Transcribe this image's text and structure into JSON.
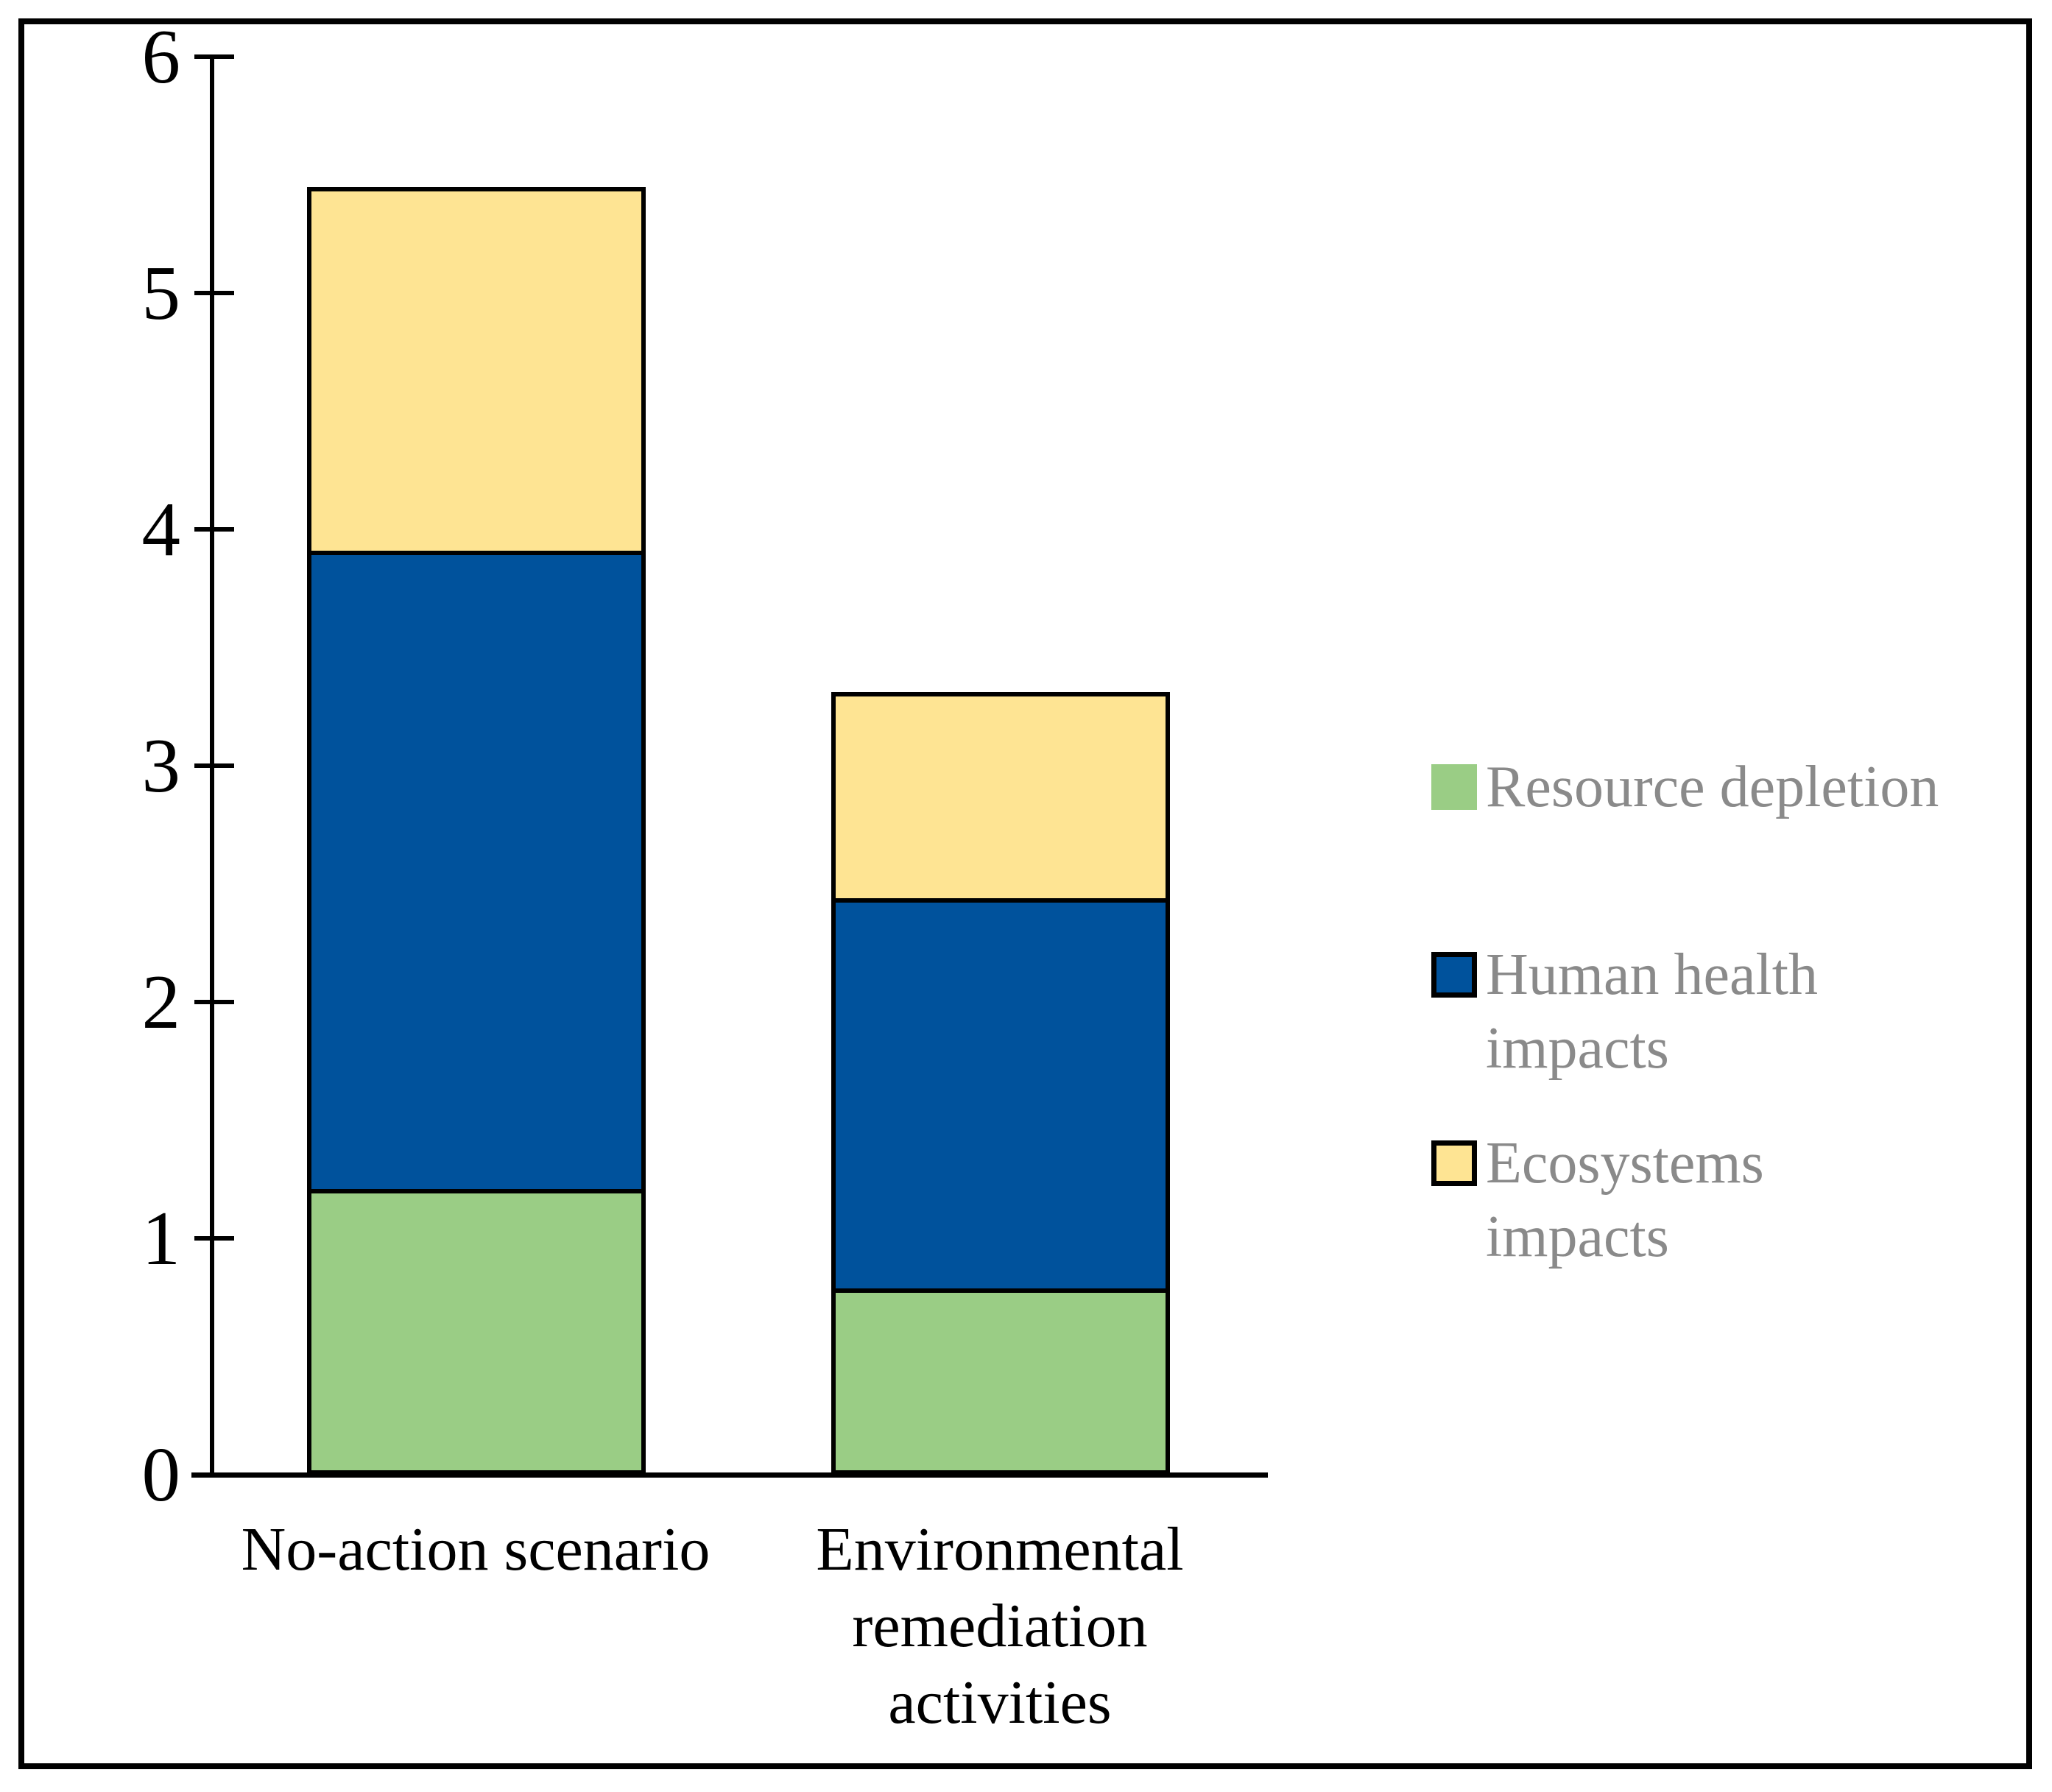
{
  "colors": {
    "background": "#FFFFFF",
    "figure_border": "#000000",
    "axis": "#000000",
    "tick_label_text": "#000000",
    "category_label_text": "#000000",
    "legend_text": "#8A8A8A"
  },
  "chart_data": {
    "type": "bar",
    "stacked": true,
    "title": "",
    "xlabel": "",
    "ylabel": "",
    "grid": false,
    "legend_position": "right",
    "ylim": [
      0,
      6
    ],
    "y_ticks": [
      0,
      1,
      2,
      3,
      4,
      5,
      6
    ],
    "categories": [
      "No-action scenario",
      "Environmental remediation activities"
    ],
    "series": [
      {
        "name": "Resource depletion",
        "color": "#9ACD85",
        "swatch_border": false,
        "values": [
          1.2,
          0.78
        ]
      },
      {
        "name": "Human health impacts",
        "color": "#00529C",
        "swatch_border": true,
        "values": [
          2.7,
          1.65
        ]
      },
      {
        "name": "Ecosystems impacts",
        "color": "#FEE493",
        "swatch_border": true,
        "values": [
          1.55,
          0.88
        ]
      }
    ],
    "totals": [
      5.45,
      3.31
    ]
  }
}
